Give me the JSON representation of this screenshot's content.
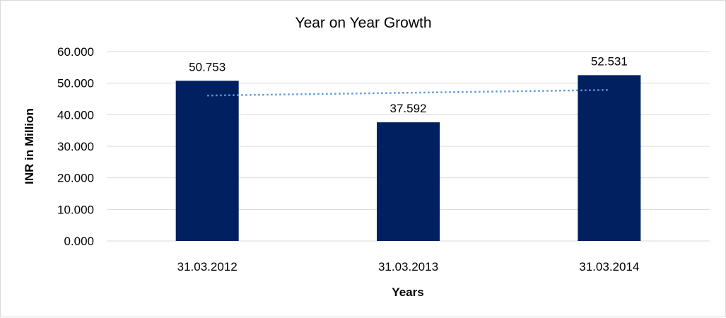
{
  "chart_data": {
    "type": "bar",
    "title": "Year on Year Growth",
    "xlabel": "Years",
    "ylabel": "INR in Million",
    "categories": [
      "31.03.2012",
      "31.03.2013",
      "31.03.2014"
    ],
    "values": [
      50.753,
      37.592,
      52.531
    ],
    "value_labels": [
      "50.753",
      "37.592",
      "52.531"
    ],
    "ylim": [
      0,
      60
    ],
    "yticks": [
      0,
      10,
      20,
      30,
      40,
      50,
      60
    ],
    "ytick_labels": [
      "0.000",
      "10.000",
      "20.000",
      "30.000",
      "40.000",
      "50.000",
      "60.000"
    ],
    "trendline": {
      "type": "linear",
      "style": "dotted"
    },
    "grid": true,
    "legend": "none",
    "colors": {
      "bar": "#002060",
      "trendline": "#5b9bd5",
      "grid": "#d9d9d9"
    }
  }
}
